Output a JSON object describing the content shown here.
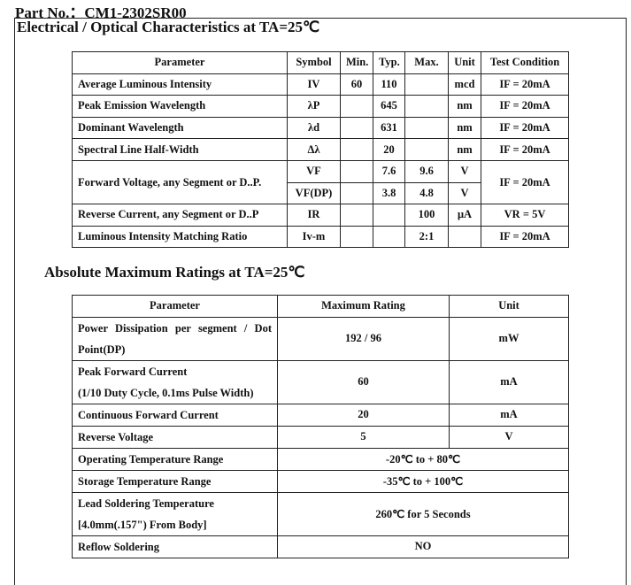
{
  "part_no": {
    "label": "Part No.：",
    "value": "CM1-2302SR00"
  },
  "electrical": {
    "title": "Electrical / Optical Characteristics at TA=25℃",
    "headers": [
      "Parameter",
      "Symbol",
      "Min.",
      "Typ.",
      "Max.",
      "Unit",
      "Test Condition"
    ],
    "rows": [
      {
        "param": "Average Luminous Intensity",
        "symbol": "IV",
        "min": "60",
        "typ": "110",
        "max": "",
        "unit": "mcd",
        "cond": "IF = 20mA"
      },
      {
        "param": "Peak Emission Wavelength",
        "symbol": "λP",
        "min": "",
        "typ": "645",
        "max": "",
        "unit": "nm",
        "cond": "IF = 20mA"
      },
      {
        "param": "Dominant Wavelength",
        "symbol": "λd",
        "min": "",
        "typ": "631",
        "max": "",
        "unit": "nm",
        "cond": "IF = 20mA"
      },
      {
        "param": "Spectral Line Half-Width",
        "symbol": "Δλ",
        "min": "",
        "typ": "20",
        "max": "",
        "unit": "nm",
        "cond": "IF = 20mA"
      },
      {
        "param": "Forward Voltage, any Segment or D..P.",
        "symbol": "VF",
        "min": "",
        "typ": "7.6",
        "max": "9.6",
        "unit": "V",
        "cond": "IF = 20mA"
      },
      {
        "symbol": "VF(DP)",
        "min": "",
        "typ": "3.8",
        "max": "4.8",
        "unit": "V"
      },
      {
        "param": "Reverse Current, any    Segment or D..P",
        "symbol": "IR",
        "min": "",
        "typ": "",
        "max": "100",
        "unit": "μA",
        "cond": "VR = 5V"
      },
      {
        "param": "Luminous Intensity Matching Ratio",
        "symbol": "Iv-m",
        "min": "",
        "typ": "",
        "max": "2:1",
        "unit": "",
        "cond": "IF = 20mA"
      }
    ]
  },
  "absolute": {
    "title": "Absolute Maximum Ratings at TA=25℃",
    "headers": [
      "Parameter",
      "Maximum Rating",
      "Unit"
    ],
    "rows": [
      {
        "param1": "Power Dissipation per segment / Dot",
        "param2": "Point(DP)",
        "rating": "192 / 96",
        "unit": "mW"
      },
      {
        "param1": "Peak Forward Current",
        "param2": "(1/10 Duty Cycle, 0.1ms Pulse Width)",
        "rating": "60",
        "unit": "mA"
      },
      {
        "param1": "Continuous Forward Current",
        "rating": "20",
        "unit": "mA"
      },
      {
        "param1": "Reverse Voltage",
        "rating": "5",
        "unit": "V"
      },
      {
        "param1": "Operating Temperature Range",
        "rating": "-20℃  to + 80℃"
      },
      {
        "param1": "Storage Temperature Range",
        "rating": "-35℃  to + 100℃"
      },
      {
        "param1": "Lead Soldering Temperature",
        "param2": "[4.0mm(.157\") From Body]",
        "rating": "260℃  for 5 Seconds"
      },
      {
        "param1": "Reflow Soldering",
        "rating": "NO"
      }
    ]
  }
}
